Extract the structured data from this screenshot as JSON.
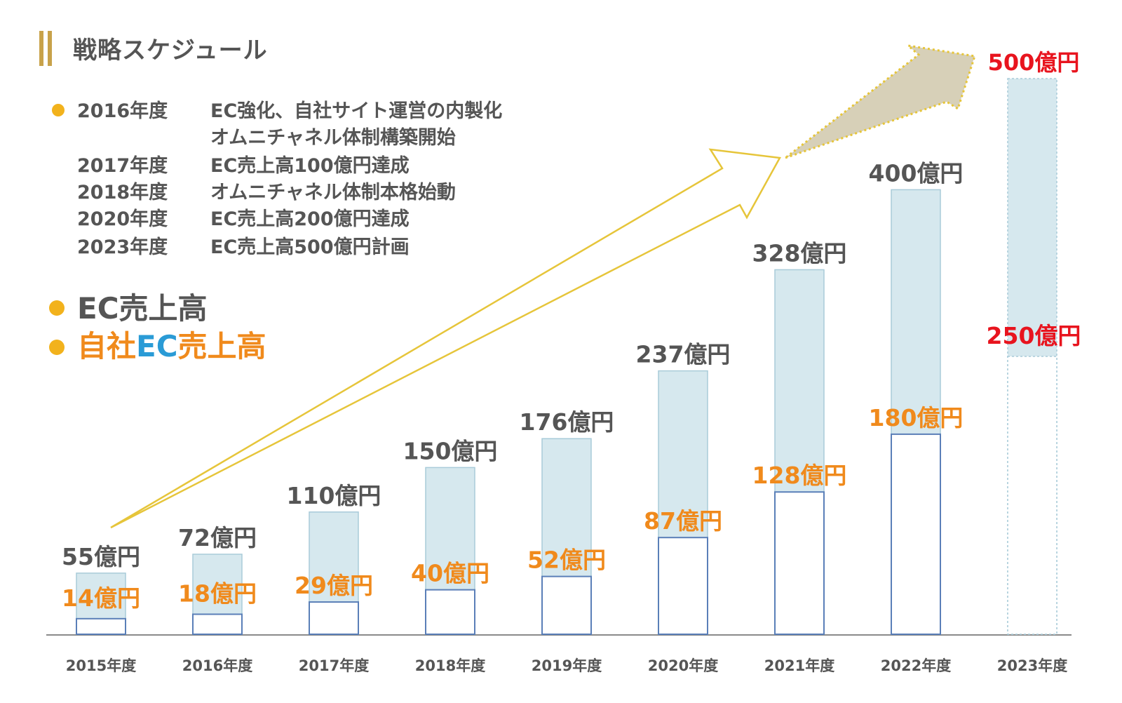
{
  "title": "戦略スケジュール",
  "schedule": [
    {
      "year": "2016年度",
      "text": "EC強化、自社サイト運営の内製化"
    },
    {
      "year": "",
      "text": "オムニチャネル体制構築開始"
    },
    {
      "year": "2017年度",
      "text": "EC売上高100億円達成"
    },
    {
      "year": "2018年度",
      "text": "オムニチャネル体制本格始動"
    },
    {
      "year": "2020年度",
      "text": "EC売上高200億円達成"
    },
    {
      "year": "2023年度",
      "text": "EC売上高500億円計画"
    }
  ],
  "legend": {
    "ec_sales": "EC売上高",
    "own_prefix": "自社",
    "own_ec": "EC",
    "own_suffix": "売上高"
  },
  "colors": {
    "total_fill": "#d6e8ee",
    "total_stroke": "#a9cbd9",
    "own_stroke": "#5a7fb8",
    "own_label": "#f08a1c",
    "plan_label": "#e8141e",
    "total_label": "#555555",
    "arrow": "#e6c53a",
    "big_arrow_fill": "#d7d0b8"
  },
  "chart_data": {
    "type": "bar",
    "categories": [
      "2015年度",
      "2016年度",
      "2017年度",
      "2018年度",
      "2019年度",
      "2020年度",
      "2021年度",
      "2022年度",
      "2023年度"
    ],
    "series": [
      {
        "name": "EC売上高",
        "values": [
          55,
          72,
          110,
          150,
          176,
          237,
          328,
          400,
          500
        ],
        "labels": [
          "55億円",
          "72億円",
          "110億円",
          "150億円",
          "176億円",
          "237億円",
          "328億円",
          "400億円",
          "500億円"
        ]
      },
      {
        "name": "自社EC売上高",
        "values": [
          14,
          18,
          29,
          40,
          52,
          87,
          128,
          180,
          250
        ],
        "labels": [
          "14億円",
          "18億円",
          "29億円",
          "40億円",
          "52億円",
          "87億円",
          "128億円",
          "180億円",
          "250億円"
        ]
      }
    ],
    "planned_categories": [
      "2023年度"
    ],
    "ylim": [
      0,
      500
    ]
  }
}
